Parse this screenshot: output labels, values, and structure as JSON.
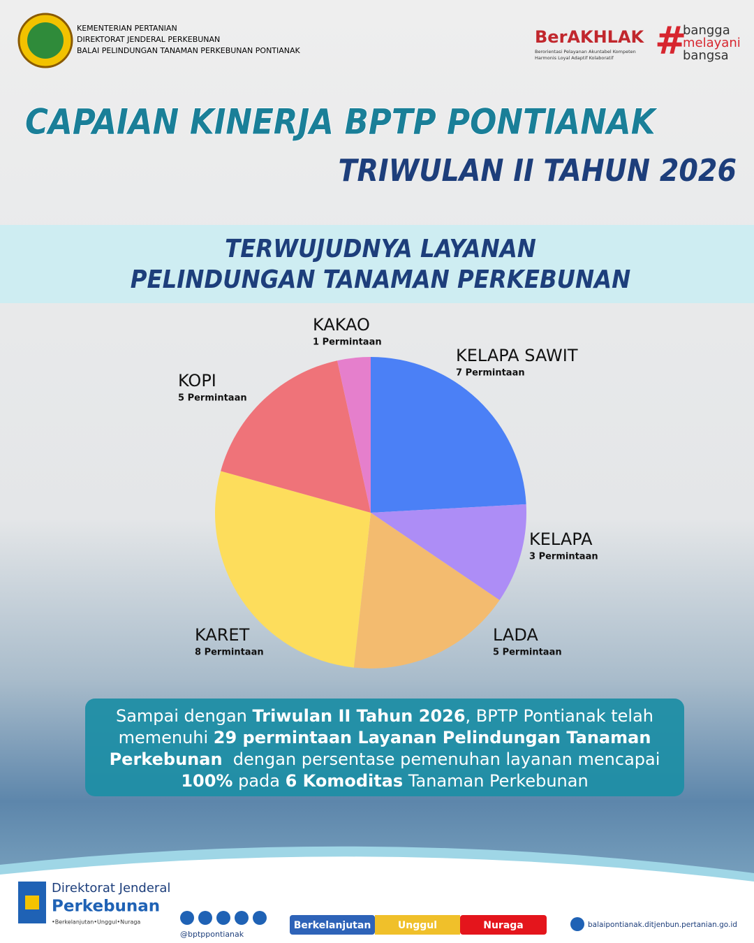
{
  "header": {
    "ministry": [
      "KEMENTERIAN PERTANIAN",
      "DIREKTORAT JENDERAL PERKEBUNAN",
      "BALAI PELINDUNGAN TANAMAN PERKEBUNAN PONTIANAK"
    ],
    "berakhlak": "BerAKHLAK",
    "berakhlak_sub": [
      "Berorientasi Pelayanan Akuntabel Kompeten",
      "Harmonis Loyal Adaptif Kolaboratif"
    ],
    "slogan": [
      "bangga",
      "melayani",
      "bangsa"
    ]
  },
  "title": "CAPAIAN KINERJA BPTP PONTIANAK",
  "subtitle": "TRIWULAN II TAHUN 2026",
  "section": [
    "TERWUJUDNYA LAYANAN",
    "PELINDUNGAN TANAMAN PERKEBUNAN"
  ],
  "chart_data": {
    "type": "pie",
    "categories": [
      "KELAPA SAWIT",
      "KELAPA",
      "LADA",
      "KARET",
      "KOPI",
      "KAKAO"
    ],
    "values": [
      7,
      3,
      5,
      8,
      5,
      1
    ],
    "value_labels": [
      "7 Permintaan",
      "3 Permintaan",
      "5 Permintaan",
      "8 Permintaan",
      "5 Permintaan",
      "1 Permintaan"
    ],
    "colors": [
      "#4b80f6",
      "#ad8df6",
      "#f3bb6f",
      "#fddd5c",
      "#ef7379",
      "#e57fcc"
    ]
  },
  "summary": [
    [
      {
        "text": "Sampai dengan ",
        "bold": false
      },
      {
        "text": "Triwulan II Tahun 2026",
        "bold": true
      },
      {
        "text": ", BPTP Pontianak telah",
        "bold": false
      }
    ],
    [
      {
        "text": "memenuhi ",
        "bold": false
      },
      {
        "text": "29 permintaan Layanan Pelindungan Tanaman",
        "bold": true
      }
    ],
    [
      {
        "text": "Perkebunan",
        "bold": true
      },
      {
        "text": "  dengan persentase pemenuhan layanan mencapai",
        "bold": false
      }
    ],
    [
      {
        "text": "100%",
        "bold": true
      },
      {
        "text": " pada ",
        "bold": false
      },
      {
        "text": "6 Komoditas",
        "bold": true
      },
      {
        "text": " Tanaman Perkebunan",
        "bold": false
      }
    ]
  ],
  "footer": {
    "org": [
      "Direktorat Jenderal",
      "Perkebunan",
      "•Berkelanjutan•Unggul•Nuraga"
    ],
    "handle": "@bptppontianak",
    "values": [
      "Berkelanjutan",
      "Unggul",
      "Nuraga"
    ],
    "website": "balaipontianak.ditjenbun.pertanian.go.id"
  }
}
